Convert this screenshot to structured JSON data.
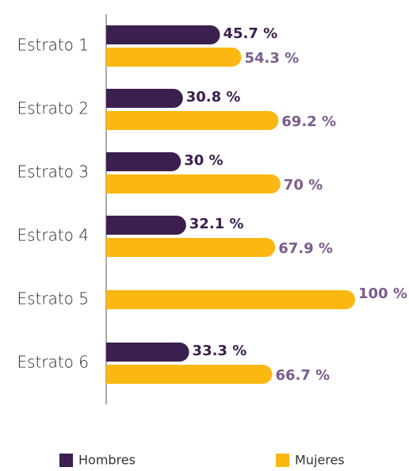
{
  "chart_data": {
    "type": "bar",
    "orientation": "horizontal",
    "categories": [
      "Estrato 1",
      "Estrato 2",
      "Estrato 3",
      "Estrato 4",
      "Estrato 5",
      "Estrato 6"
    ],
    "series": [
      {
        "name": "Hombres",
        "color": "#3b1f4e",
        "label_color": "#3b1f4e",
        "values": [
          45.7,
          30.8,
          30,
          32.1,
          null,
          33.3
        ],
        "value_labels": [
          "45.7 %",
          "30.8 %",
          "30 %",
          "32.1 %",
          null,
          "33.3 %"
        ]
      },
      {
        "name": "Mujeres",
        "color": "#fbb812",
        "label_color": "#7a5c8c",
        "values": [
          54.3,
          69.2,
          70,
          67.9,
          100,
          66.7
        ],
        "value_labels": [
          "54.3 %",
          "69.2 %",
          "70 %",
          "67.9 %",
          "100 %",
          "66.7 %"
        ]
      }
    ],
    "xlim": [
      0,
      100
    ]
  }
}
